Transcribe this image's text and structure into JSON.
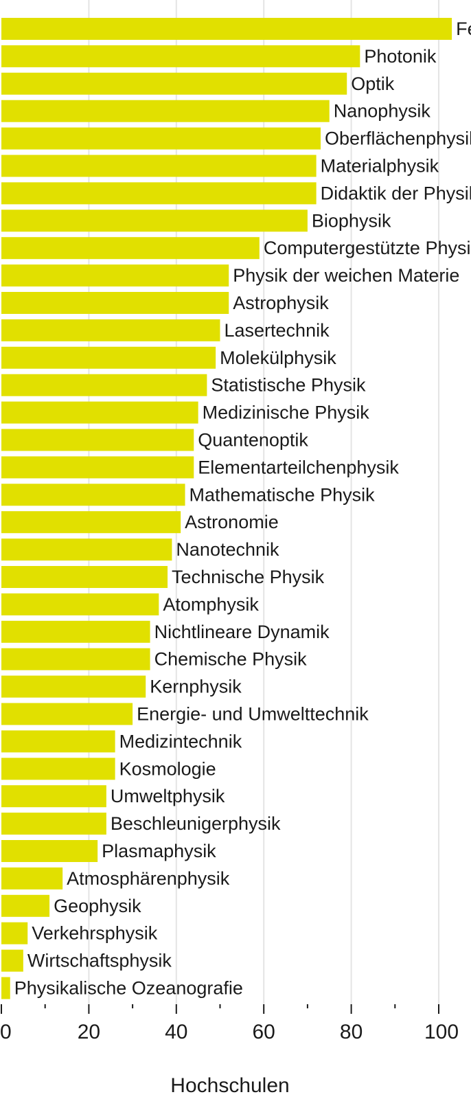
{
  "chart_data": {
    "type": "bar",
    "orientation": "horizontal",
    "bar_color": "#e1e000",
    "grid": true,
    "xlabel": "Hochschulen",
    "xlim": [
      0,
      103
    ],
    "xticks": [
      0,
      20,
      40,
      60,
      80,
      100
    ],
    "xtick_labels": [
      "0",
      "20",
      "40",
      "60",
      "80",
      "100"
    ],
    "categories": [
      "Festkörperphysik",
      "Photonik",
      "Optik",
      "Nanophysik",
      "Oberflächenphysik",
      "Materialphysik",
      "Didaktik der Physik",
      "Biophysik",
      "Computergestützte Physik",
      "Physik der weichen Materie",
      "Astrophysik",
      "Lasertechnik",
      "Molekülphysik",
      "Statistische Physik",
      "Medizinische Physik",
      "Quantenoptik",
      "Elementarteilchenphysik",
      "Mathematische Physik",
      "Astronomie",
      "Nanotechnik",
      "Technische Physik",
      "Atomphysik",
      "Nichtlineare Dynamik",
      "Chemische Physik",
      "Kernphysik",
      "Energie- und Umwelttechnik",
      "Medizintechnik",
      "Kosmologie",
      "Umweltphysik",
      "Beschleunigerphysik",
      "Plasmaphysik",
      "Atmosphärenphysik",
      "Geophysik",
      "Verkehrsphysik",
      "Wirtschaftsphysik",
      "Physikalische Ozeanografie"
    ],
    "values": [
      103,
      82,
      79,
      75,
      73,
      72,
      72,
      70,
      59,
      52,
      52,
      50,
      49,
      47,
      45,
      44,
      44,
      42,
      41,
      39,
      38,
      36,
      34,
      34,
      33,
      30,
      26,
      26,
      24,
      24,
      22,
      14,
      11,
      6,
      5,
      2
    ]
  }
}
